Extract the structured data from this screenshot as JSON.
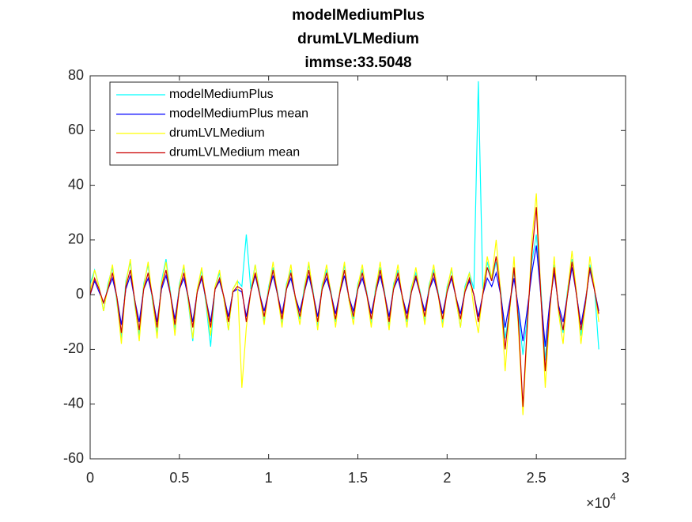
{
  "chart_data": {
    "type": "line",
    "title": [
      "modelMediumPlus",
      "drumLVLMedium",
      "immse:33.5048"
    ],
    "x_multiplier": {
      "base": "×10",
      "exponent": "4"
    },
    "x": [
      0,
      250,
      500,
      750,
      1000,
      1250,
      1500,
      1750,
      2000,
      2250,
      2500,
      2750,
      3000,
      3250,
      3500,
      3750,
      4000,
      4250,
      4500,
      4750,
      5000,
      5250,
      5500,
      5750,
      6000,
      6250,
      6500,
      6750,
      7000,
      7250,
      7500,
      7750,
      8000,
      8250,
      8500,
      8750,
      9000,
      9250,
      9500,
      9750,
      10000,
      10250,
      10500,
      10750,
      11000,
      11250,
      11500,
      11750,
      12000,
      12250,
      12500,
      12750,
      13000,
      13250,
      13500,
      13750,
      14000,
      14250,
      14500,
      14750,
      15000,
      15250,
      15500,
      15750,
      16000,
      16250,
      16500,
      16750,
      17000,
      17250,
      17500,
      17750,
      18000,
      18250,
      18500,
      18750,
      19000,
      19250,
      19500,
      19750,
      20000,
      20250,
      20500,
      20750,
      21000,
      21250,
      21500,
      21750,
      22000,
      22250,
      22500,
      22750,
      23000,
      23250,
      23500,
      23750,
      24000,
      24250,
      24500,
      24750,
      25000,
      25250,
      25500,
      25750,
      26000,
      26250,
      26500,
      26750,
      27000,
      27250,
      27500,
      27750,
      28000,
      28250,
      28500
    ],
    "series": [
      {
        "name": "modelMediumPlus",
        "color": "#00ffff",
        "values": [
          4,
          9,
          3,
          -6,
          4,
          10,
          -3,
          -16,
          5,
          12,
          -4,
          -15,
          4,
          11,
          -3,
          -14,
          5,
          13,
          1,
          -13,
          4,
          10,
          -3,
          -17,
          2,
          9,
          -4,
          -19,
          3,
          8,
          -2,
          -13,
          2,
          5,
          3,
          22,
          2,
          11,
          1,
          -10,
          3,
          10,
          1,
          -11,
          4,
          9,
          -2,
          -9,
          3,
          11,
          1,
          -12,
          4,
          9,
          1,
          -10,
          2,
          11,
          -2,
          -9,
          4,
          9,
          1,
          -11,
          3,
          10,
          1,
          -12,
          4,
          9,
          -2,
          -10,
          3,
          8,
          1,
          -10,
          4,
          9,
          1,
          -11,
          3,
          9,
          -2,
          -12,
          3,
          8,
          2,
          78,
          2,
          12,
          5,
          12,
          2,
          -16,
          -6,
          9,
          -7,
          -22,
          -8,
          12,
          22,
          3,
          -24,
          -5,
          11,
          -6,
          -14,
          2,
          13,
          1,
          -15,
          -4,
          11,
          3,
          -20
        ]
      },
      {
        "name": "modelMediumPlus mean",
        "color": "#0000ff",
        "values": [
          0,
          5,
          1,
          -3,
          2,
          6,
          -1,
          -11,
          2,
          7,
          -2,
          -10,
          2,
          6,
          -1,
          -10,
          2,
          7,
          0,
          -9,
          2,
          6,
          -1,
          -10,
          1,
          6,
          -2,
          -10,
          2,
          5,
          -1,
          -8,
          1,
          2,
          1,
          -8,
          1,
          7,
          0,
          -6,
          1,
          7,
          0,
          -7,
          2,
          6,
          -1,
          -6,
          1,
          7,
          0,
          -8,
          2,
          6,
          0,
          -7,
          1,
          7,
          -1,
          -6,
          2,
          6,
          0,
          -7,
          1,
          7,
          0,
          -8,
          2,
          6,
          -1,
          -7,
          1,
          6,
          0,
          -6,
          2,
          6,
          0,
          -7,
          1,
          6,
          -1,
          -7,
          1,
          5,
          0,
          -8,
          0,
          6,
          3,
          8,
          0,
          -12,
          -3,
          6,
          -5,
          -17,
          -5,
          8,
          18,
          0,
          -19,
          -3,
          8,
          -4,
          -10,
          0,
          10,
          0,
          -11,
          -2,
          9,
          2,
          -6
        ]
      },
      {
        "name": "drumLVLMedium",
        "color": "#ffff00",
        "values": [
          1,
          9,
          3,
          -6,
          3,
          11,
          -2,
          -18,
          4,
          13,
          -3,
          -17,
          3,
          12,
          -2,
          -16,
          4,
          12,
          0,
          -15,
          3,
          11,
          -2,
          -16,
          2,
          10,
          -3,
          -15,
          3,
          9,
          -2,
          -13,
          2,
          5,
          -34,
          -12,
          1,
          11,
          0,
          -11,
          2,
          12,
          0,
          -12,
          3,
          11,
          -2,
          -11,
          2,
          12,
          0,
          -13,
          3,
          11,
          0,
          -12,
          2,
          12,
          -2,
          -11,
          3,
          11,
          0,
          -12,
          2,
          12,
          0,
          -13,
          3,
          11,
          -2,
          -12,
          2,
          10,
          0,
          -11,
          3,
          11,
          0,
          -12,
          2,
          10,
          -2,
          -12,
          2,
          8,
          -5,
          -14,
          1,
          14,
          6,
          20,
          1,
          -28,
          -7,
          14,
          -13,
          -44,
          -12,
          20,
          37,
          1,
          -34,
          -7,
          14,
          -7,
          -18,
          1,
          16,
          1,
          -18,
          -4,
          14,
          3,
          -10
        ]
      },
      {
        "name": "drumLVLMedium mean",
        "color": "#cc0000",
        "values": [
          0,
          6,
          2,
          -3,
          2,
          8,
          -1,
          -14,
          3,
          9,
          -2,
          -13,
          2,
          8,
          -1,
          -12,
          3,
          9,
          0,
          -11,
          2,
          8,
          -1,
          -12,
          1,
          7,
          -2,
          -12,
          2,
          6,
          -1,
          -10,
          1,
          3,
          2,
          -10,
          1,
          8,
          0,
          -8,
          1,
          9,
          0,
          -9,
          2,
          8,
          -1,
          -8,
          1,
          9,
          0,
          -10,
          2,
          8,
          0,
          -9,
          1,
          9,
          -1,
          -8,
          2,
          8,
          0,
          -9,
          1,
          9,
          0,
          -10,
          2,
          8,
          -1,
          -9,
          1,
          7,
          0,
          -8,
          2,
          8,
          0,
          -9,
          1,
          7,
          -1,
          -9,
          1,
          6,
          0,
          -10,
          0,
          10,
          5,
          14,
          0,
          -20,
          -5,
          10,
          -10,
          -41,
          -10,
          15,
          32,
          0,
          -28,
          -5,
          10,
          -5,
          -13,
          0,
          12,
          0,
          -13,
          -3,
          10,
          2,
          -7
        ]
      }
    ],
    "xlim": [
      0,
      30000
    ],
    "xticks": [
      0,
      {
        "value": 5000,
        "label": "0.5"
      },
      {
        "value": 10000,
        "label": "1"
      },
      {
        "value": 15000,
        "label": "1.5"
      },
      {
        "value": 20000,
        "label": "2"
      },
      {
        "value": 25000,
        "label": "2.5"
      },
      {
        "value": 30000,
        "label": "3"
      }
    ],
    "ylim": [
      -60,
      80
    ],
    "yticks": [
      -60,
      -40,
      -20,
      0,
      20,
      40,
      60,
      80
    ],
    "grid": false,
    "legend": "northwest"
  }
}
